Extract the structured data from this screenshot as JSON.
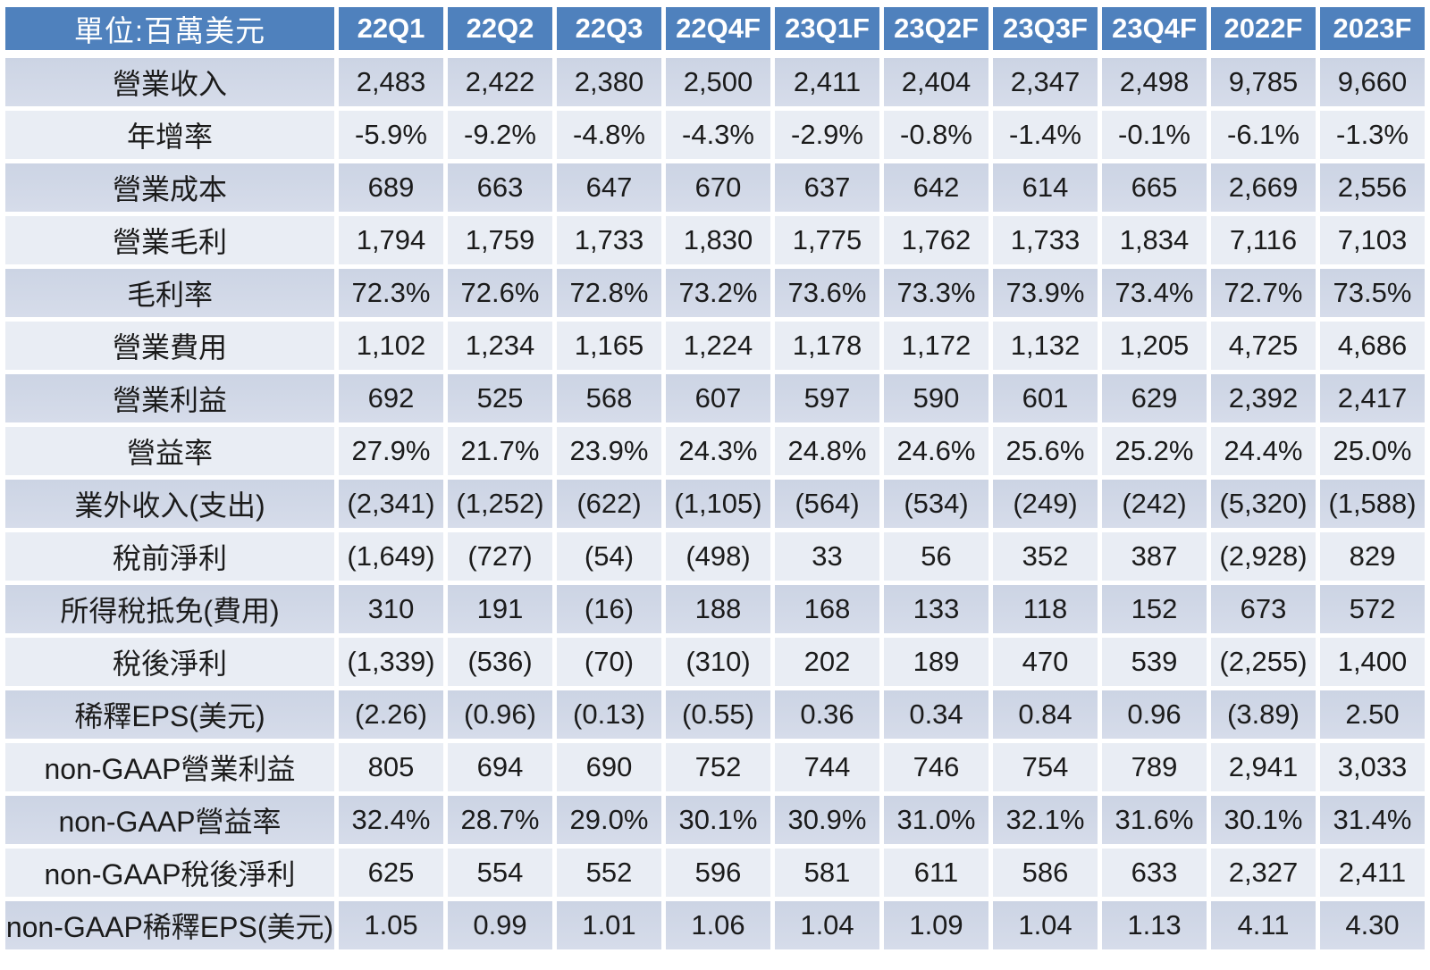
{
  "colors": {
    "header_bg": "#4F81BD",
    "header_text": "#FFFFFF",
    "row_dark_top": "#CCD4E4",
    "row_dark_bottom": "#D6DCEA",
    "row_light": "#E9EDF4",
    "cell_text": "#1B1B1B",
    "background": "#FFFFFF"
  },
  "chart_data": {
    "type": "table",
    "title": "Quarterly income statement forecast (unit: million USD)",
    "unit_label": "單位:百萬美元",
    "columns": [
      "22Q1",
      "22Q2",
      "22Q3",
      "22Q4F",
      "23Q1F",
      "23Q2F",
      "23Q3F",
      "23Q4F",
      "2022F",
      "2023F"
    ],
    "rows": [
      {
        "label": "營業收入",
        "values": [
          "2,483",
          "2,422",
          "2,380",
          "2,500",
          "2,411",
          "2,404",
          "2,347",
          "2,498",
          "9,785",
          "9,660"
        ]
      },
      {
        "label": "年增率",
        "values": [
          "-5.9%",
          "-9.2%",
          "-4.8%",
          "-4.3%",
          "-2.9%",
          "-0.8%",
          "-1.4%",
          "-0.1%",
          "-6.1%",
          "-1.3%"
        ]
      },
      {
        "label": "營業成本",
        "values": [
          "689",
          "663",
          "647",
          "670",
          "637",
          "642",
          "614",
          "665",
          "2,669",
          "2,556"
        ]
      },
      {
        "label": "營業毛利",
        "values": [
          "1,794",
          "1,759",
          "1,733",
          "1,830",
          "1,775",
          "1,762",
          "1,733",
          "1,834",
          "7,116",
          "7,103"
        ]
      },
      {
        "label": "毛利率",
        "values": [
          "72.3%",
          "72.6%",
          "72.8%",
          "73.2%",
          "73.6%",
          "73.3%",
          "73.9%",
          "73.4%",
          "72.7%",
          "73.5%"
        ]
      },
      {
        "label": "營業費用",
        "values": [
          "1,102",
          "1,234",
          "1,165",
          "1,224",
          "1,178",
          "1,172",
          "1,132",
          "1,205",
          "4,725",
          "4,686"
        ]
      },
      {
        "label": "營業利益",
        "values": [
          "692",
          "525",
          "568",
          "607",
          "597",
          "590",
          "601",
          "629",
          "2,392",
          "2,417"
        ]
      },
      {
        "label": "營益率",
        "values": [
          "27.9%",
          "21.7%",
          "23.9%",
          "24.3%",
          "24.8%",
          "24.6%",
          "25.6%",
          "25.2%",
          "24.4%",
          "25.0%"
        ]
      },
      {
        "label": "業外收入(支出)",
        "values": [
          "(2,341)",
          "(1,252)",
          "(622)",
          "(1,105)",
          "(564)",
          "(534)",
          "(249)",
          "(242)",
          "(5,320)",
          "(1,588)"
        ]
      },
      {
        "label": "稅前淨利",
        "values": [
          "(1,649)",
          "(727)",
          "(54)",
          "(498)",
          "33",
          "56",
          "352",
          "387",
          "(2,928)",
          "829"
        ]
      },
      {
        "label": "所得稅抵免(費用)",
        "values": [
          "310",
          "191",
          "(16)",
          "188",
          "168",
          "133",
          "118",
          "152",
          "673",
          "572"
        ]
      },
      {
        "label": "稅後淨利",
        "values": [
          "(1,339)",
          "(536)",
          "(70)",
          "(310)",
          "202",
          "189",
          "470",
          "539",
          "(2,255)",
          "1,400"
        ]
      },
      {
        "label": "稀釋EPS(美元)",
        "values": [
          "(2.26)",
          "(0.96)",
          "(0.13)",
          "(0.55)",
          "0.36",
          "0.34",
          "0.84",
          "0.96",
          "(3.89)",
          "2.50"
        ]
      },
      {
        "label": "non-GAAP營業利益",
        "values": [
          "805",
          "694",
          "690",
          "752",
          "744",
          "746",
          "754",
          "789",
          "2,941",
          "3,033"
        ]
      },
      {
        "label": "non-GAAP營益率",
        "values": [
          "32.4%",
          "28.7%",
          "29.0%",
          "30.1%",
          "30.9%",
          "31.0%",
          "32.1%",
          "31.6%",
          "30.1%",
          "31.4%"
        ]
      },
      {
        "label": "non-GAAP稅後淨利",
        "values": [
          "625",
          "554",
          "552",
          "596",
          "581",
          "611",
          "586",
          "633",
          "2,327",
          "2,411"
        ]
      },
      {
        "label": "non-GAAP稀釋EPS(美元)",
        "values": [
          "1.05",
          "0.99",
          "1.01",
          "1.06",
          "1.04",
          "1.09",
          "1.04",
          "1.13",
          "4.11",
          "4.30"
        ]
      }
    ]
  }
}
